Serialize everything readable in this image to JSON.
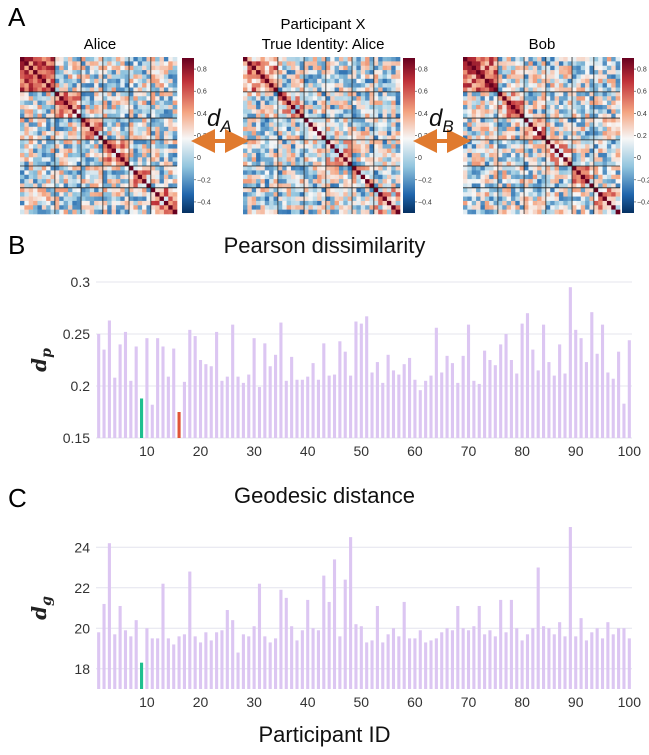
{
  "panels": {
    "a": "A",
    "b": "B",
    "c": "C"
  },
  "matrices": {
    "alice_title": "Alice",
    "participant_title_line1": "Participant X",
    "participant_title_line2": "True Identity: Alice",
    "bob_title": "Bob",
    "colorbar_ticks": [
      "0.8",
      "0.6",
      "0.4",
      "0.2",
      "0",
      "−0.2",
      "−0.4"
    ],
    "distance_a": {
      "symbol": "d",
      "subscript": "A"
    },
    "distance_b": {
      "symbol": "d",
      "subscript": "B"
    },
    "arrow_color": "#e07a2e"
  },
  "colors": {
    "bar": "#dcc6f2",
    "highlight_green": "#1fbf8f",
    "highlight_red": "#e0553a",
    "grid": "#e4e4ee"
  },
  "xlabel": "Participant ID",
  "chart_data": [
    {
      "type": "bar",
      "title": "Pearson dissimilarity",
      "ylabel": "d_p",
      "ylabel_symbol": "d",
      "ylabel_sub": "p",
      "ylim": [
        0.15,
        0.3
      ],
      "yticks": [
        0.15,
        0.2,
        0.25,
        0.3
      ],
      "yticklabels": [
        "0.15",
        "0.2",
        "0.25",
        "0.3"
      ],
      "xticks": [
        10,
        20,
        30,
        40,
        50,
        60,
        70,
        80,
        90,
        100
      ],
      "x": [
        1,
        2,
        3,
        4,
        5,
        6,
        7,
        8,
        9,
        10,
        11,
        12,
        13,
        14,
        15,
        16,
        17,
        18,
        19,
        20,
        21,
        22,
        23,
        24,
        25,
        26,
        27,
        28,
        29,
        30,
        31,
        32,
        33,
        34,
        35,
        36,
        37,
        38,
        39,
        40,
        41,
        42,
        43,
        44,
        45,
        46,
        47,
        48,
        49,
        50,
        51,
        52,
        53,
        54,
        55,
        56,
        57,
        58,
        59,
        60,
        61,
        62,
        63,
        64,
        65,
        66,
        67,
        68,
        69,
        70,
        71,
        72,
        73,
        74,
        75,
        76,
        77,
        78,
        79,
        80,
        81,
        82,
        83,
        84,
        85,
        86,
        87,
        88,
        89,
        90,
        91,
        92,
        93,
        94,
        95,
        96,
        97,
        98,
        99,
        100
      ],
      "values": [
        0.25,
        0.235,
        0.263,
        0.208,
        0.24,
        0.252,
        0.205,
        0.238,
        0.188,
        0.246,
        0.182,
        0.246,
        0.238,
        0.209,
        0.236,
        0.175,
        0.204,
        0.254,
        0.248,
        0.225,
        0.221,
        0.219,
        0.252,
        0.205,
        0.209,
        0.259,
        0.209,
        0.203,
        0.211,
        0.246,
        0.199,
        0.241,
        0.219,
        0.23,
        0.261,
        0.205,
        0.228,
        0.206,
        0.206,
        0.209,
        0.222,
        0.206,
        0.241,
        0.21,
        0.211,
        0.243,
        0.233,
        0.21,
        0.262,
        0.26,
        0.267,
        0.213,
        0.223,
        0.203,
        0.23,
        0.215,
        0.211,
        0.221,
        0.227,
        0.206,
        0.196,
        0.205,
        0.21,
        0.256,
        0.213,
        0.229,
        0.222,
        0.203,
        0.229,
        0.259,
        0.205,
        0.202,
        0.234,
        0.225,
        0.22,
        0.24,
        0.25,
        0.225,
        0.212,
        0.26,
        0.27,
        0.235,
        0.215,
        0.259,
        0.223,
        0.21,
        0.24,
        0.212,
        0.295,
        0.254,
        0.246,
        0.223,
        0.271,
        0.231,
        0.259,
        0.213,
        0.207,
        0.233,
        0.183,
        0.244
      ],
      "highlight": [
        {
          "x": 9,
          "color": "#1fbf8f"
        },
        {
          "x": 16,
          "color": "#e0553a"
        }
      ]
    },
    {
      "type": "bar",
      "title": "Geodesic distance",
      "ylabel": "d_g",
      "ylabel_symbol": "d",
      "ylabel_sub": "g",
      "ylim": [
        17,
        25
      ],
      "yticks": [
        18,
        20,
        22,
        24
      ],
      "yticklabels": [
        "18",
        "20",
        "22",
        "24"
      ],
      "xticks": [
        10,
        20,
        30,
        40,
        50,
        60,
        70,
        80,
        90,
        100
      ],
      "x": [
        1,
        2,
        3,
        4,
        5,
        6,
        7,
        8,
        9,
        10,
        11,
        12,
        13,
        14,
        15,
        16,
        17,
        18,
        19,
        20,
        21,
        22,
        23,
        24,
        25,
        26,
        27,
        28,
        29,
        30,
        31,
        32,
        33,
        34,
        35,
        36,
        37,
        38,
        39,
        40,
        41,
        42,
        43,
        44,
        45,
        46,
        47,
        48,
        49,
        50,
        51,
        52,
        53,
        54,
        55,
        56,
        57,
        58,
        59,
        60,
        61,
        62,
        63,
        64,
        65,
        66,
        67,
        68,
        69,
        70,
        71,
        72,
        73,
        74,
        75,
        76,
        77,
        78,
        79,
        80,
        81,
        82,
        83,
        84,
        85,
        86,
        87,
        88,
        89,
        90,
        91,
        92,
        93,
        94,
        95,
        96,
        97,
        98,
        99,
        100
      ],
      "values": [
        19.8,
        21.2,
        24.2,
        19.7,
        21.1,
        19.9,
        19.6,
        20.4,
        18.3,
        20.0,
        19.5,
        19.5,
        22.2,
        19.5,
        19.2,
        19.6,
        19.7,
        22.8,
        19.6,
        19.3,
        19.8,
        19.4,
        19.8,
        19.9,
        20.9,
        20.4,
        18.8,
        19.7,
        19.6,
        20.1,
        22.2,
        19.6,
        19.3,
        19.5,
        21.9,
        21.5,
        20.1,
        19.4,
        19.9,
        21.4,
        20.0,
        19.9,
        22.6,
        21.3,
        23.4,
        19.6,
        22.4,
        24.5,
        20.2,
        20.1,
        19.3,
        19.4,
        21.1,
        19.3,
        19.7,
        20.0,
        19.6,
        21.3,
        19.5,
        19.5,
        19.9,
        19.3,
        19.4,
        19.5,
        19.8,
        20.0,
        19.9,
        21.1,
        20.0,
        19.9,
        20.1,
        21.1,
        19.7,
        19.9,
        19.6,
        21.4,
        19.8,
        21.4,
        20.0,
        19.4,
        19.7,
        20.0,
        23.0,
        20.1,
        20.0,
        19.7,
        20.3,
        19.6,
        25.0,
        19.6,
        20.5,
        19.4,
        19.8,
        20.0,
        19.5,
        20.3,
        19.7,
        20.0,
        20.0,
        19.5
      ],
      "highlight": [
        {
          "x": 9,
          "color": "#1fbf8f"
        }
      ]
    }
  ]
}
